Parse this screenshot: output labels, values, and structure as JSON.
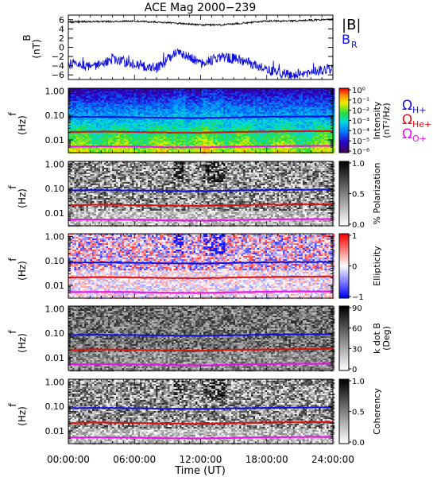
{
  "title": "ACE Mag 2000−239",
  "xaxis": {
    "label": "Time (UT)",
    "ticks": [
      "00:00:00",
      "06:00:00",
      "12:00:00",
      "18:00:00",
      "24:00:00"
    ],
    "range_hours": [
      0,
      24
    ]
  },
  "legend_B": {
    "total": "|B|",
    "radial": "B",
    "radial_sub": "R",
    "total_color": "#000000",
    "radial_color": "#1010dd"
  },
  "legend_gyro": [
    {
      "sym": "Ω",
      "sub": "H+",
      "color": "#1010dd"
    },
    {
      "sym": "Ω",
      "sub": "He+",
      "color": "#dd1111"
    },
    {
      "sym": "Ω",
      "sub": "O+",
      "color": "#ee10ee"
    }
  ],
  "freq_axis": {
    "label": "f",
    "unit": "(Hz)",
    "ticks": [
      "1.00",
      "0.10",
      "0.01"
    ]
  },
  "chart_data": [
    {
      "type": "line",
      "panel": "B-field",
      "ylabel": "B",
      "yunit": "(nT)",
      "ylim": [
        -7,
        7
      ],
      "yticks": [
        "6",
        "4",
        "2",
        "0",
        "−2",
        "−4",
        "−6"
      ],
      "x_hours": [
        0,
        2,
        4,
        6,
        8,
        10,
        12,
        14,
        16,
        18,
        20,
        22,
        24
      ],
      "series": [
        {
          "name": "|B|",
          "values": [
            5.5,
            5.6,
            5.6,
            5.7,
            5.5,
            5.2,
            4.9,
            4.9,
            5.3,
            5.7,
            5.7,
            5.9,
            6.1
          ],
          "color": "#000000"
        },
        {
          "name": "B_R",
          "values": [
            -3.5,
            -4.2,
            -2.5,
            -3.6,
            -4.6,
            -0.8,
            -3.5,
            -2.0,
            -3.0,
            -5.0,
            -6.0,
            -5.4,
            -4.5
          ],
          "color": "#1010dd"
        }
      ]
    },
    {
      "type": "heatmap",
      "panel": "Intensity",
      "colorbar": {
        "label": "Intensity",
        "unit": "(nT²/Hz)",
        "ticks": [
          "10⁰",
          "10⁻¹",
          "10⁻²",
          "10⁻³",
          "10⁻⁴",
          "10⁻⁵",
          "10⁻⁶"
        ]
      },
      "ylim_hz": [
        0.003,
        1.3
      ],
      "yscale": "log"
    },
    {
      "type": "heatmap",
      "panel": "Polarization",
      "colorbar": {
        "label": "% Polarization",
        "ticks": [
          "1.0",
          "0.5",
          "0.0"
        ]
      },
      "ylim_hz": [
        0.003,
        1.3
      ],
      "yscale": "log"
    },
    {
      "type": "heatmap",
      "panel": "Ellipticity",
      "colorbar": {
        "label": "Ellipticity",
        "ticks": [
          "1",
          "0",
          "−1"
        ]
      },
      "ylim_hz": [
        0.003,
        1.3
      ],
      "yscale": "log"
    },
    {
      "type": "heatmap",
      "panel": "k dot B",
      "colorbar": {
        "label": "k dot B",
        "unit": "(Deg)",
        "ticks": [
          "90",
          "60",
          "30",
          "0"
        ]
      },
      "ylim_hz": [
        0.003,
        1.3
      ],
      "yscale": "log"
    },
    {
      "type": "heatmap",
      "panel": "Coherency",
      "colorbar": {
        "label": "Coherency",
        "ticks": [
          "1.0",
          "0.5",
          "0.0"
        ]
      },
      "ylim_hz": [
        0.003,
        1.3
      ],
      "yscale": "log"
    }
  ],
  "gyro_lines": {
    "x_hours": [
      0,
      3,
      6,
      9,
      12,
      15,
      18,
      21,
      24
    ],
    "H_plus_hz": [
      0.085,
      0.087,
      0.084,
      0.08,
      0.078,
      0.083,
      0.088,
      0.09,
      0.092
    ],
    "He_plus_hz": [
      0.021,
      0.022,
      0.021,
      0.02,
      0.0195,
      0.021,
      0.022,
      0.0225,
      0.023
    ],
    "O_plus_hz": [
      0.0053,
      0.0054,
      0.0053,
      0.005,
      0.0049,
      0.0052,
      0.0055,
      0.0056,
      0.0057
    ]
  },
  "colors": {
    "H_plus": "#1010dd",
    "He_plus": "#dd1111",
    "O_plus": "#ee10ee"
  }
}
